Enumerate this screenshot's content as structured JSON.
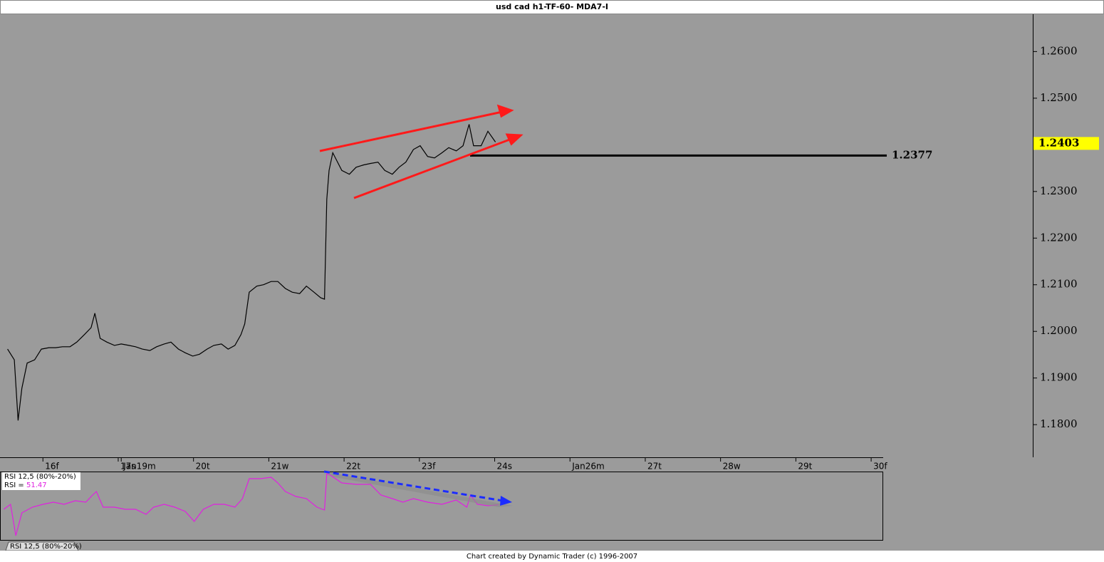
{
  "title": "usd cad h1-TF-60- MDA7-I",
  "footer": "Chart created by Dynamic Trader  (c) 1996-2007",
  "tab": "RSI 12,5 (80%-20%)",
  "chart_data": [
    {
      "type": "line",
      "title": "usd cad h1-TF-60- MDA7-I",
      "series": [
        {
          "name": "usd cad",
          "color": "#000000",
          "x": [
            -0.47,
            -0.38,
            -0.33,
            -0.28,
            -0.21,
            -0.11,
            -0.02,
            0.08,
            0.17,
            0.26,
            0.36,
            0.45,
            0.55,
            0.64,
            0.69,
            0.76,
            0.85,
            0.95,
            1.04,
            1.14,
            1.23,
            1.32,
            1.42,
            1.51,
            1.61,
            1.7,
            1.8,
            1.89,
            1.99,
            2.08,
            2.18,
            2.27,
            2.37,
            2.46,
            2.55,
            2.63,
            2.68,
            2.74,
            2.84,
            2.93,
            3.03,
            3.12,
            3.22,
            3.31,
            3.41,
            3.5,
            3.6,
            3.69,
            3.74,
            3.77,
            3.8,
            3.85,
            3.9,
            3.97,
            4.07,
            4.16,
            4.26,
            4.35,
            4.45,
            4.54,
            4.64,
            4.73,
            4.82,
            4.92,
            5.01,
            5.11,
            5.2,
            5.3,
            5.39,
            5.49,
            5.58,
            5.66,
            5.72,
            5.82,
            5.91,
            6.01
          ],
          "values": [
            1.1962,
            1.1939,
            1.1809,
            1.1878,
            1.1932,
            1.1939,
            1.1962,
            1.1965,
            1.1965,
            1.1967,
            1.1967,
            1.1977,
            1.1993,
            1.2008,
            1.2039,
            1.1985,
            1.1977,
            1.197,
            1.1973,
            1.197,
            1.1967,
            1.1962,
            1.1959,
            1.1967,
            1.1973,
            1.1977,
            1.1962,
            1.1954,
            1.1947,
            1.1951,
            1.1962,
            1.197,
            1.1973,
            1.1962,
            1.197,
            1.1993,
            1.2016,
            1.2084,
            1.2097,
            1.21,
            1.2107,
            1.2107,
            1.2092,
            1.2084,
            1.2081,
            1.2097,
            1.2084,
            1.2072,
            1.2069,
            1.2283,
            1.2345,
            1.2383,
            1.2367,
            1.2345,
            1.2337,
            1.2352,
            1.2357,
            1.236,
            1.2363,
            1.2345,
            1.2337,
            1.2352,
            1.2363,
            1.239,
            1.2398,
            1.2375,
            1.2372,
            1.2383,
            1.2394,
            1.2387,
            1.2398,
            1.2444,
            1.2398,
            1.2398,
            1.2429,
            1.2406
          ]
        }
      ],
      "xlim": [
        -0.57,
        11.16
      ],
      "xticks": [
        {
          "value": 0,
          "label": "16f"
        },
        {
          "value": 1,
          "label": "17s"
        },
        {
          "value": 1.04,
          "label": "Jan19m"
        },
        {
          "value": 2,
          "label": "20t"
        },
        {
          "value": 3,
          "label": "21w"
        },
        {
          "value": 4,
          "label": "22t"
        },
        {
          "value": 5,
          "label": "23f"
        },
        {
          "value": 6,
          "label": "24s"
        },
        {
          "value": 7,
          "label": "Jan26m"
        },
        {
          "value": 8,
          "label": "27t"
        },
        {
          "value": 9,
          "label": "28w"
        },
        {
          "value": 10,
          "label": "29t"
        },
        {
          "value": 11,
          "label": "30f"
        }
      ],
      "ylim": [
        1.173,
        1.268
      ],
      "yticks": [
        {
          "value": 1.26,
          "label": "1.2600"
        },
        {
          "value": 1.25,
          "label": "1.2500"
        },
        {
          "value": 1.23,
          "label": "1.2300"
        },
        {
          "value": 1.22,
          "label": "1.2200"
        },
        {
          "value": 1.21,
          "label": "1.2100"
        },
        {
          "value": 1.2,
          "label": "1.2000"
        },
        {
          "value": 1.19,
          "label": "1.1900"
        },
        {
          "value": 1.18,
          "label": "1.1800"
        }
      ],
      "level": 1.2377,
      "last": 1.2403,
      "last_color": "#ffff00"
    },
    {
      "type": "line",
      "title": "RSI 12,5 (80%-20%)",
      "value_name": "RSI =",
      "series": [
        {
          "name": "RSI",
          "color": "#e020e0",
          "x": [
            -0.52,
            -0.43,
            -0.36,
            -0.28,
            -0.14,
            0,
            0.14,
            0.28,
            0.43,
            0.57,
            0.66,
            0.71,
            0.8,
            0.95,
            1.09,
            1.23,
            1.37,
            1.47,
            1.61,
            1.75,
            1.89,
            2.01,
            2.13,
            2.27,
            2.41,
            2.55,
            2.65,
            2.74,
            2.89,
            3.03,
            3.12,
            3.22,
            3.36,
            3.5,
            3.64,
            3.74,
            3.77,
            3.83,
            3.97,
            4.16,
            4.35,
            4.49,
            4.64,
            4.78,
            4.92,
            5.11,
            5.3,
            5.49,
            5.63,
            5.68,
            5.77,
            5.91,
            6.05
          ],
          "values": [
            44.8,
            52.1,
            6.3,
            39.6,
            47.9,
            52.1,
            55.2,
            52.1,
            57.3,
            55.2,
            65.6,
            70.8,
            47.9,
            47.9,
            44.8,
            44.8,
            37.5,
            47.9,
            52.1,
            47.9,
            41.7,
            27.1,
            44.8,
            52.1,
            52.1,
            47.9,
            60.4,
            89.6,
            89.6,
            91.7,
            83.3,
            70.8,
            63.5,
            60.4,
            47.9,
            43.8,
            96.9,
            93.8,
            83.3,
            81.3,
            81.3,
            65.6,
            60.4,
            55.2,
            60.4,
            55.2,
            52.1,
            58.3,
            47.9,
            65.6,
            52.1,
            50,
            51.47
          ]
        }
      ],
      "xlim": [
        -0.57,
        11.16
      ],
      "ylim": [
        0,
        100
      ]
    }
  ]
}
